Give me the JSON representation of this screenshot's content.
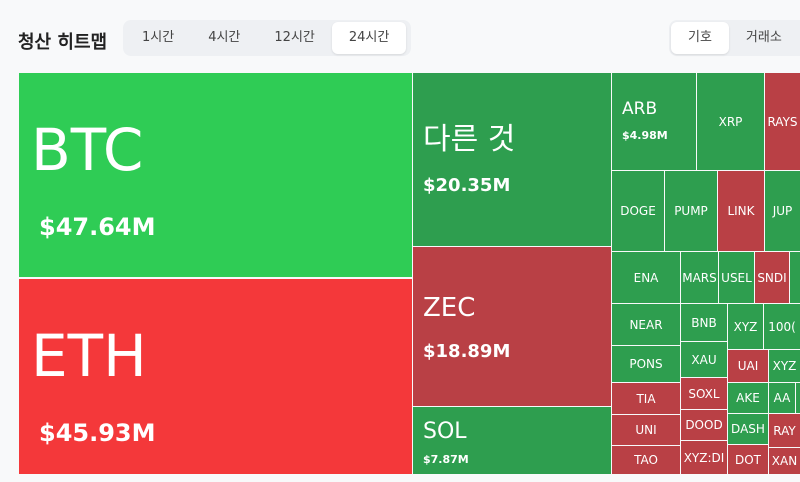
{
  "header": {
    "title": "청산 히트맵",
    "tabs": [
      "1시간",
      "4시간",
      "12시간",
      "24시간"
    ],
    "active_tab": "24시간",
    "toggle": [
      "기호",
      "거래소"
    ],
    "active_toggle": "기호"
  },
  "tiles": [
    {
      "label": "BTC",
      "value": "$47.64M",
      "color": "#2fcc55"
    },
    {
      "label": "ETH",
      "value": "$45.93M",
      "color": "#f4383a"
    },
    {
      "label": "다른 것",
      "value": "$20.35M",
      "color": "#2e9e4f"
    },
    {
      "label": "ZEC",
      "value": "$18.89M",
      "color": "#b94045"
    },
    {
      "label": "SOL",
      "value": "$7.87M",
      "color": "#2e9e4f"
    },
    {
      "label": "ARB",
      "value": "$4.98M",
      "color": "#2e9e4f"
    },
    {
      "label": "XRP",
      "color": "#2e9e4f"
    },
    {
      "label": "RAYS",
      "color": "#b94045"
    },
    {
      "label": "DOGE",
      "color": "#2e9e4f"
    },
    {
      "label": "PUMP",
      "color": "#2e9e4f"
    },
    {
      "label": "LINK",
      "color": "#b94045"
    },
    {
      "label": "JUP",
      "color": "#2e9e4f"
    },
    {
      "label": "ENA",
      "color": "#2e9e4f"
    },
    {
      "label": "MARS",
      "color": "#2e9e4f"
    },
    {
      "label": "USEL",
      "color": "#2e9e4f"
    },
    {
      "label": "SNDI",
      "color": "#b94045"
    },
    {
      "label": "NEAR",
      "color": "#2e9e4f"
    },
    {
      "label": "PONS",
      "color": "#2e9e4f"
    },
    {
      "label": "TIA",
      "color": "#b94045"
    },
    {
      "label": "UNI",
      "color": "#b94045"
    },
    {
      "label": "TAO",
      "color": "#b94045"
    },
    {
      "label": "BNB",
      "color": "#2e9e4f"
    },
    {
      "label": "XAU",
      "color": "#2e9e4f"
    },
    {
      "label": "SOXL",
      "color": "#b94045"
    },
    {
      "label": "DOOD",
      "color": "#b94045"
    },
    {
      "label": "XYZ:DI",
      "color": "#b94045"
    },
    {
      "label": "XYZ",
      "color": "#2e9e4f"
    },
    {
      "label": "100(",
      "color": "#2e9e4f"
    },
    {
      "label": "UAI",
      "color": "#b94045"
    },
    {
      "label": "AKE",
      "color": "#2e9e4f"
    },
    {
      "label": "DASH",
      "color": "#2e9e4f"
    },
    {
      "label": "DOT",
      "color": "#b94045"
    },
    {
      "label": "XYZ",
      "color": "#2e9e4f"
    },
    {
      "label": "AA",
      "color": "#2e9e4f"
    },
    {
      "label": "RAY",
      "color": "#b94045"
    },
    {
      "label": "XAN",
      "color": "#b94045"
    }
  ]
}
